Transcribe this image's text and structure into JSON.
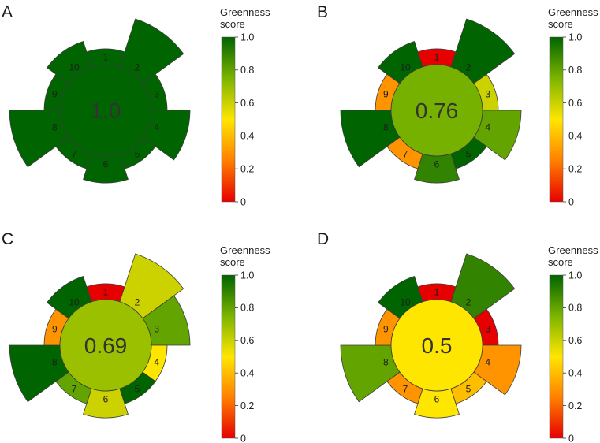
{
  "chart_data": [
    {
      "type": "polar-bar",
      "panel": "A",
      "score_label": "1.0",
      "categories": [
        "1",
        "2",
        "3",
        "4",
        "5",
        "6",
        "7",
        "8",
        "9",
        "10"
      ],
      "scores": [
        1.0,
        1.0,
        1.0,
        1.0,
        1.0,
        1.0,
        1.0,
        1.0,
        1.0,
        1.0
      ],
      "weights": [
        1,
        4,
        1,
        3,
        1,
        2,
        1,
        4,
        1,
        2
      ],
      "center_score": 1.0
    },
    {
      "type": "polar-bar",
      "panel": "B",
      "score_label": "0.76",
      "categories": [
        "1",
        "2",
        "3",
        "4",
        "5",
        "6",
        "7",
        "8",
        "9",
        "10"
      ],
      "scores": [
        0.0,
        1.0,
        0.6,
        0.8,
        1.0,
        0.9,
        0.3,
        1.0,
        0.3,
        1.0
      ],
      "weights": [
        1,
        4,
        1,
        3,
        1,
        2,
        1,
        4,
        1,
        2
      ],
      "center_score": 0.76
    },
    {
      "type": "polar-bar",
      "panel": "C",
      "score_label": "0.69",
      "categories": [
        "1",
        "2",
        "3",
        "4",
        "5",
        "6",
        "7",
        "8",
        "9",
        "10"
      ],
      "scores": [
        0.0,
        0.6,
        0.8,
        0.5,
        1.0,
        0.6,
        0.8,
        1.0,
        0.3,
        1.0
      ],
      "weights": [
        1,
        4,
        3,
        1,
        1,
        2,
        1,
        4,
        1,
        2
      ],
      "center_score": 0.69
    },
    {
      "type": "polar-bar",
      "panel": "D",
      "score_label": "0.5",
      "categories": [
        "1",
        "2",
        "3",
        "4",
        "5",
        "6",
        "7",
        "8",
        "9",
        "10"
      ],
      "scores": [
        0.0,
        0.9,
        0.0,
        0.3,
        0.4,
        0.5,
        0.3,
        0.8,
        0.3,
        1.0
      ],
      "weights": [
        1,
        4,
        1,
        3,
        1,
        2,
        1,
        4,
        1,
        2
      ],
      "center_score": 0.5
    }
  ],
  "legend": {
    "title_line1": "Greenness",
    "title_line2": "score",
    "ticks": [
      "1.0",
      "0.8",
      "0.6",
      "0.4",
      "0.2",
      "0"
    ],
    "tick_values": [
      1.0,
      0.8,
      0.6,
      0.4,
      0.2,
      0.0
    ]
  },
  "colormap": [
    "#e60000",
    "#ff8000",
    "#ffe600",
    "#7cb400",
    "#006400"
  ]
}
